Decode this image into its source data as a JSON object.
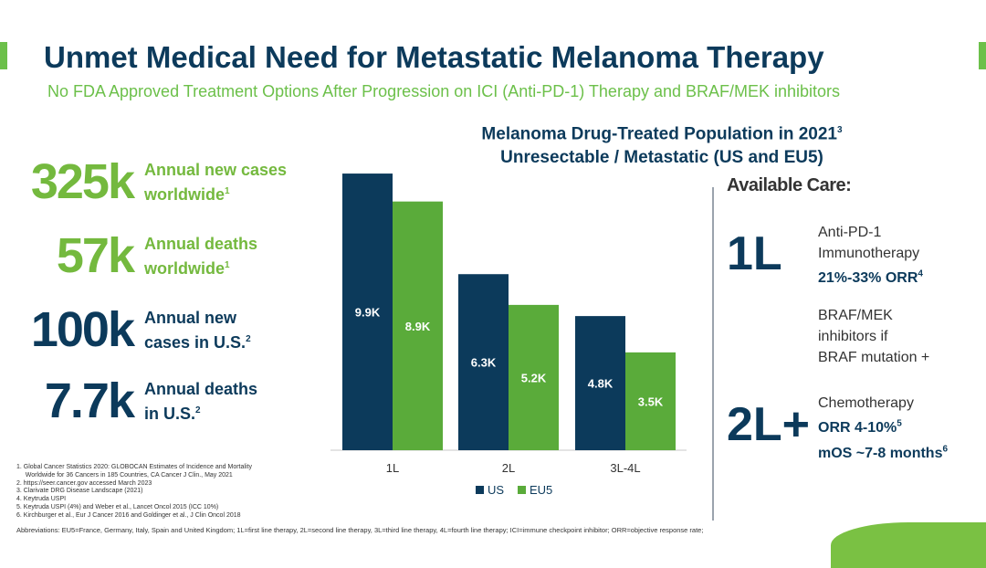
{
  "title": "Unmet Medical Need for Metastatic Melanoma Therapy",
  "subtitle": "No FDA Approved Treatment Options After Progression on ICI (Anti-PD-1) Therapy and BRAF/MEK inhibitors",
  "stats": [
    {
      "value": "325k",
      "label1": "Annual new cases",
      "label2": "worldwide",
      "sup": "1"
    },
    {
      "value": "57k",
      "label1": "Annual deaths",
      "label2": "worldwide",
      "sup": "1"
    },
    {
      "value": "100k",
      "label1": "Annual new",
      "label2": "cases in U.S.",
      "sup": "2"
    },
    {
      "value": "7.7k",
      "label1": "Annual deaths",
      "label2": "in U.S.",
      "sup": "2"
    }
  ],
  "chart_title": {
    "line1": "Melanoma Drug-Treated Population in 2021",
    "line1_sup": "3",
    "line2": "Unresectable / Metastatic (US and EU5)"
  },
  "chart_data": {
    "type": "bar",
    "title": "Melanoma Drug-Treated Population in 2021 Unresectable / Metastatic (US and EU5)",
    "categories": [
      "1L",
      "2L",
      "3L-4L"
    ],
    "series": [
      {
        "name": "US",
        "values": [
          9.9,
          6.3,
          4.8
        ],
        "labels": [
          "9.9K",
          "6.3K",
          "4.8K"
        ],
        "color": "#0c3a5b"
      },
      {
        "name": "EU5",
        "values": [
          8.9,
          5.2,
          3.5
        ],
        "labels": [
          "8.9K",
          "5.2K",
          "3.5K"
        ],
        "color": "#5aab3a"
      }
    ],
    "ylim": [
      0,
      10
    ],
    "xlabel": "",
    "ylabel": "",
    "legend": "bottom"
  },
  "care": {
    "title": "Available Care:",
    "line1": "1L",
    "line1_text": [
      "Anti-PD-1",
      "Immunotherapy"
    ],
    "line1_orr": "21%-33% ORR",
    "line1_orr_sup": "4",
    "braf_text": [
      "BRAF/MEK",
      "inhibitors if",
      "BRAF mutation +"
    ],
    "line2": "2L+",
    "line2_text": "Chemotherapy",
    "line2_orr": "ORR 4-10%",
    "line2_orr_sup": "5",
    "line2_mos": "mOS ~7-8 months",
    "line2_mos_sup": "6"
  },
  "references": [
    "1.  Global Cancer Statistics 2020: GLOBOCAN Estimates of Incidence and Mortality",
    "     Worldwide for 36 Cancers in 185 Countries, CA Cancer J Clin., May 2021",
    "2.  https://seer.cancer.gov accessed March 2023",
    "3.  Clarivate DRG Disease Landscape (2021)",
    "4.  Keytruda USPI",
    "5.  Keytruda USPI (4%) and Weber et al., Lancet Oncol 2015 (ICC 10%)",
    "6.  Kirchburger et al., Eur J Cancer 2016 and Goldinger et al., J Clin Oncol 2018"
  ],
  "abbreviations": "Abbreviations: EU5=France, Germany, Italy, Spain and United Kingdom; 1L=first line therapy, 2L=second line therapy, 3L=third line therapy, 4L=fourth line therapy; ICI=immune checkpoint inhibitor; ORR=objective response rate;",
  "colors": {
    "navy": "#0c3a5b",
    "green": "#6cc04a",
    "bar_green": "#5aab3a"
  }
}
